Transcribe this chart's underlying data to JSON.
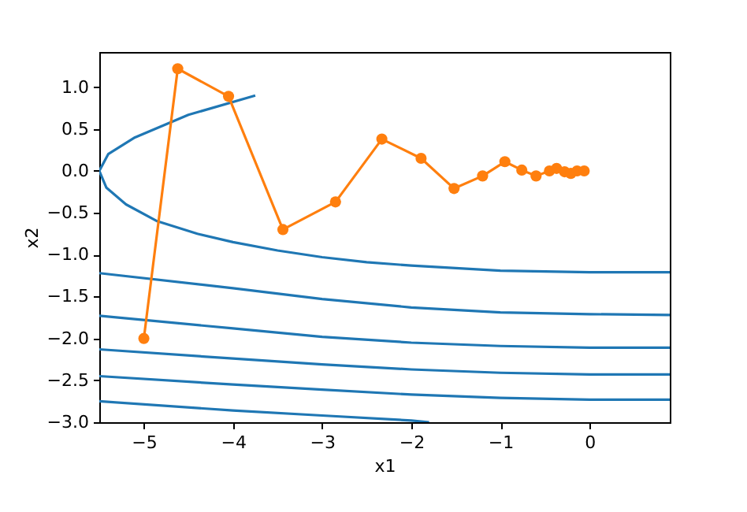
{
  "chart_data": {
    "type": "line",
    "xlabel": "x1",
    "ylabel": "x2",
    "grid": false,
    "xlim": [
      -5.5,
      0.9
    ],
    "ylim": [
      -3.0,
      1.42
    ],
    "xticks": [
      {
        "value": -5,
        "label": "−5"
      },
      {
        "value": -4,
        "label": "−4"
      },
      {
        "value": -3,
        "label": "−3"
      },
      {
        "value": -2,
        "label": "−2"
      },
      {
        "value": -1,
        "label": "−1"
      },
      0
    ],
    "yticks": [
      {
        "value": -3,
        "label": "−3.0"
      },
      {
        "value": -2.5,
        "label": "−2.5"
      },
      {
        "value": -2,
        "label": "−2.0"
      },
      {
        "value": -1.5,
        "label": "−1.5"
      },
      {
        "value": -1,
        "label": "−1.0"
      },
      {
        "value": -0.5,
        "label": "−0.5"
      },
      {
        "value": 0,
        "label": "0.0"
      },
      {
        "value": 0.5,
        "label": "0.5"
      },
      {
        "value": 1,
        "label": "1.0"
      }
    ],
    "series": [
      {
        "color": "#1f77b4",
        "x": [
          -3.75,
          -4.5,
          -5.1,
          -5.4,
          -5.5,
          -5.42,
          -5.2,
          -4.85,
          -4.4,
          -4,
          -3.5,
          -3,
          -2.5,
          -2,
          -1,
          0,
          0.9
        ],
        "values": [
          0.9,
          0.67,
          0.4,
          0.2,
          0.0,
          -0.2,
          -0.4,
          -0.6,
          -0.75,
          -0.85,
          -0.95,
          -1.03,
          -1.09,
          -1.13,
          -1.19,
          -1.21,
          -1.21
        ]
      },
      {
        "color": "#1f77b4",
        "x": [
          -5.5,
          -4,
          -3,
          -2,
          -1,
          0,
          0.9
        ],
        "values": [
          -1.22,
          -1.4,
          -1.53,
          -1.63,
          -1.69,
          -1.71,
          -1.72
        ]
      },
      {
        "color": "#1f77b4",
        "x": [
          -5.5,
          -4,
          -3,
          -2,
          -1,
          0,
          0.9
        ],
        "values": [
          -1.73,
          -1.88,
          -1.98,
          -2.05,
          -2.09,
          -2.11,
          -2.11
        ]
      },
      {
        "color": "#1f77b4",
        "x": [
          -5.5,
          -4,
          -3,
          -2,
          -1,
          0,
          0.9
        ],
        "values": [
          -2.13,
          -2.24,
          -2.31,
          -2.37,
          -2.41,
          -2.43,
          -2.43
        ]
      },
      {
        "color": "#1f77b4",
        "x": [
          -5.5,
          -4,
          -3,
          -2,
          -1,
          0,
          0.9
        ],
        "values": [
          -2.45,
          -2.55,
          -2.61,
          -2.67,
          -2.71,
          -2.73,
          -2.73
        ]
      },
      {
        "color": "#1f77b4",
        "x": [
          -5.5,
          -4,
          -3,
          -2,
          -1.8
        ],
        "values": [
          -2.75,
          -2.86,
          -2.92,
          -2.98,
          -3.0
        ]
      },
      {
        "color": "#ff7f0e",
        "marker": "circle",
        "x": [
          -5,
          -4.62,
          -4.05,
          -3.44,
          -2.85,
          -2.33,
          -1.89,
          -1.52,
          -1.2,
          -0.95,
          -0.76,
          -0.6,
          -0.45,
          -0.37,
          -0.28,
          -0.21,
          -0.14,
          -0.06
        ],
        "values": [
          -2,
          1.22,
          0.89,
          -0.7,
          -0.37,
          0.38,
          0.15,
          -0.21,
          -0.06,
          0.11,
          0.01,
          -0.06,
          0.0,
          0.03,
          -0.01,
          -0.03,
          0.0,
          0.0
        ]
      }
    ]
  }
}
